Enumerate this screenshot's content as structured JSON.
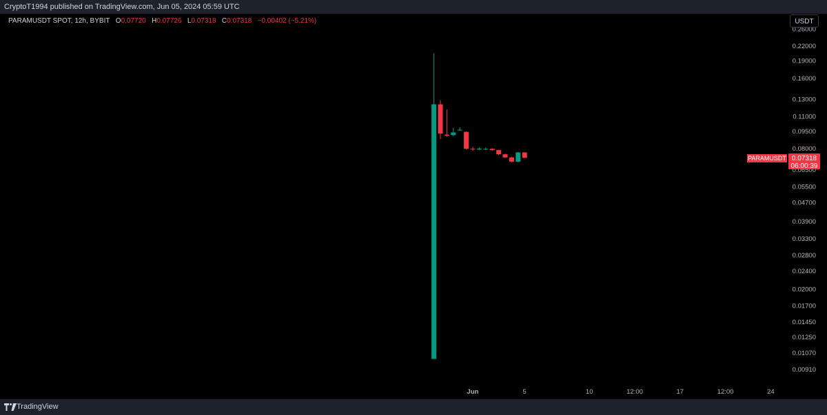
{
  "header": {
    "published_text": "CryptoT1994 published on TradingView.com, Jun 05, 2024 05:59 UTC"
  },
  "legend": {
    "symbol": "PARAMUSDT SPOT, 12h, BYBIT",
    "o_label": "O",
    "o_value": "0.07720",
    "h_label": "H",
    "h_value": "0.07726",
    "l_label": "L",
    "l_value": "0.07318",
    "c_label": "C",
    "c_value": "0.07318",
    "change": "−0.00402 (−5.21%)"
  },
  "toolbar": {
    "unit_label": "USDT"
  },
  "price_tag": {
    "symbol": "PARAMUSDT",
    "price": "0.07318",
    "countdown": "06:00:39"
  },
  "footer": {
    "brand": "TradingView"
  },
  "colors": {
    "up": "#089981",
    "down": "#f23645",
    "axis_text": "#b2b5be",
    "bar_bg": "#1e222d"
  },
  "chart_data": {
    "type": "candlestick",
    "scale": "log",
    "y_ticks": [
      "0.26000",
      "0.22000",
      "0.19000",
      "0.16000",
      "0.13000",
      "0.11000",
      "0.09500",
      "0.08000",
      "0.06500",
      "0.05500",
      "0.04700",
      "0.03900",
      "0.03300",
      "0.02800",
      "0.02400",
      "0.02000",
      "0.01700",
      "0.01450",
      "0.01250",
      "0.01070",
      "0.00910"
    ],
    "x_ticks": [
      {
        "label": "Jun",
        "x": 0
      },
      {
        "label": "5",
        "x": 8
      },
      {
        "label": "10",
        "x": 18
      },
      {
        "label": "12:00",
        "x": 25
      },
      {
        "label": "17",
        "x": 32
      },
      {
        "label": "12:00",
        "x": 39
      },
      {
        "label": "24",
        "x": 46
      }
    ],
    "ylim": [
      0.0085,
      0.27
    ],
    "candles": [
      {
        "x": -6,
        "o": 0.0101,
        "h": 0.205,
        "l": 0.0101,
        "c": 0.124
      },
      {
        "x": -5,
        "o": 0.124,
        "h": 0.129,
        "l": 0.088,
        "c": 0.093
      },
      {
        "x": -4,
        "o": 0.092,
        "h": 0.118,
        "l": 0.09,
        "c": 0.091
      },
      {
        "x": -3,
        "o": 0.0915,
        "h": 0.0985,
        "l": 0.0905,
        "c": 0.094
      },
      {
        "x": -2,
        "o": 0.096,
        "h": 0.099,
        "l": 0.0955,
        "c": 0.0965
      },
      {
        "x": -1,
        "o": 0.0945,
        "h": 0.095,
        "l": 0.0795,
        "c": 0.08
      },
      {
        "x": 0,
        "o": 0.08,
        "h": 0.0815,
        "l": 0.0785,
        "c": 0.0795
      },
      {
        "x": 1,
        "o": 0.0795,
        "h": 0.0812,
        "l": 0.079,
        "c": 0.0802
      },
      {
        "x": 2,
        "o": 0.0798,
        "h": 0.0812,
        "l": 0.079,
        "c": 0.08
      },
      {
        "x": 3,
        "o": 0.08,
        "h": 0.0805,
        "l": 0.0785,
        "c": 0.079
      },
      {
        "x": 4,
        "o": 0.079,
        "h": 0.0792,
        "l": 0.0752,
        "c": 0.0758
      },
      {
        "x": 5,
        "o": 0.0758,
        "h": 0.0762,
        "l": 0.073,
        "c": 0.0735
      },
      {
        "x": 6,
        "o": 0.0735,
        "h": 0.074,
        "l": 0.07,
        "c": 0.0705
      },
      {
        "x": 7,
        "o": 0.0705,
        "h": 0.0775,
        "l": 0.07,
        "c": 0.0772
      },
      {
        "x": 8,
        "o": 0.0772,
        "h": 0.0773,
        "l": 0.0732,
        "c": 0.0732
      }
    ]
  }
}
